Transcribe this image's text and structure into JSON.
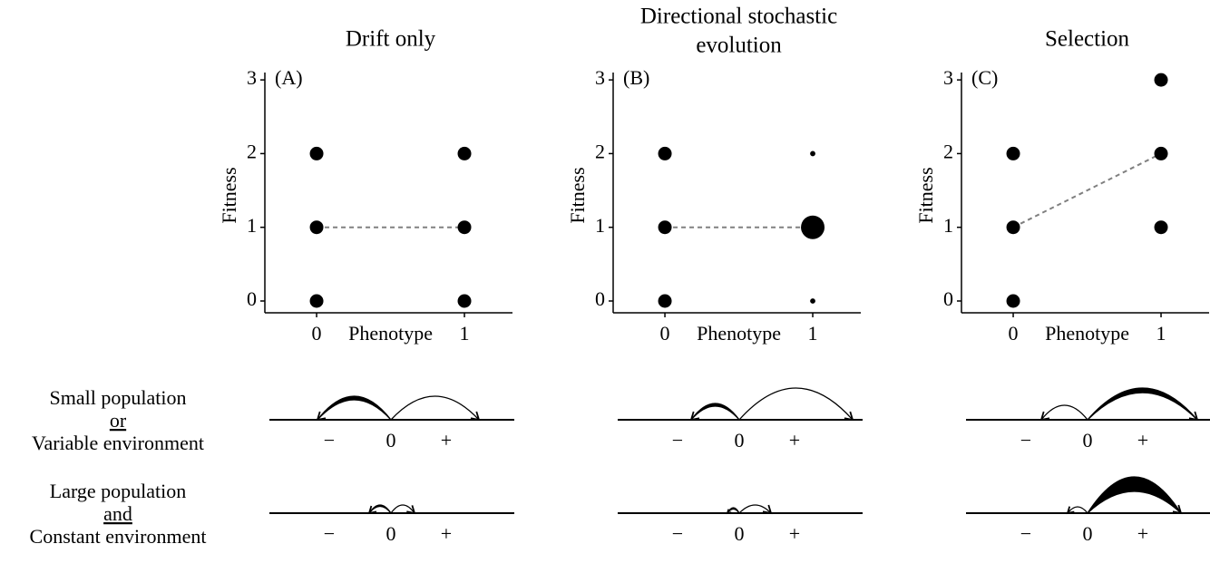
{
  "chart_data": [
    {
      "type": "scatter",
      "title": [
        "Drift only"
      ],
      "panel_label": "(A)",
      "xlabel": "Phenotype",
      "ylabel": "Fitness",
      "x": [
        0,
        0,
        0,
        1,
        1,
        1
      ],
      "values": [
        0,
        1,
        2,
        0,
        1,
        2
      ],
      "sizes": [
        1,
        1,
        1,
        1,
        1,
        1
      ],
      "color": "#000000",
      "mean_line": {
        "x": [
          0,
          1
        ],
        "values": [
          1,
          1
        ]
      },
      "xlim": [
        -0.35,
        1.325
      ],
      "ylim": [
        -0.16,
        3.1
      ],
      "xticks": [
        0,
        1
      ],
      "yticks": [
        0,
        1,
        2,
        3
      ]
    },
    {
      "type": "scatter",
      "title": [
        "Directional stochastic",
        "evolution"
      ],
      "panel_label": "(B)",
      "xlabel": "Phenotype",
      "ylabel": "Fitness",
      "x": [
        0,
        0,
        0,
        1,
        1,
        1
      ],
      "values": [
        0,
        1,
        2,
        0,
        1,
        2
      ],
      "sizes": [
        1,
        1,
        1,
        0.15,
        3,
        0.15
      ],
      "color": "#000000",
      "mean_line": {
        "x": [
          0,
          1
        ],
        "values": [
          1,
          1
        ]
      },
      "xlim": [
        -0.35,
        1.325
      ],
      "ylim": [
        -0.16,
        3.1
      ],
      "xticks": [
        0,
        1
      ],
      "yticks": [
        0,
        1,
        2,
        3
      ]
    },
    {
      "type": "scatter",
      "title": [
        "Selection"
      ],
      "panel_label": "(C)",
      "xlabel": "Phenotype",
      "ylabel": "Fitness",
      "x": [
        0,
        0,
        0,
        1,
        1,
        1
      ],
      "values": [
        0,
        1,
        2,
        1,
        2,
        3
      ],
      "sizes": [
        1,
        1,
        1,
        1,
        1,
        1
      ],
      "color": "#000000",
      "mean_line": {
        "x": [
          0,
          1
        ],
        "values": [
          1,
          2
        ]
      },
      "xlim": [
        -0.35,
        1.325
      ],
      "ylim": [
        -0.16,
        3.1
      ],
      "xticks": [
        0,
        1
      ],
      "yticks": [
        0,
        1,
        2,
        3
      ]
    }
  ],
  "diagram": {
    "rows": [
      {
        "label": [
          "Small population",
          "or",
          "Variable environment"
        ]
      },
      {
        "label": [
          "Large population",
          "and",
          "Constant environment"
        ]
      }
    ],
    "axis_labels": [
      "−",
      "0",
      "+"
    ]
  }
}
